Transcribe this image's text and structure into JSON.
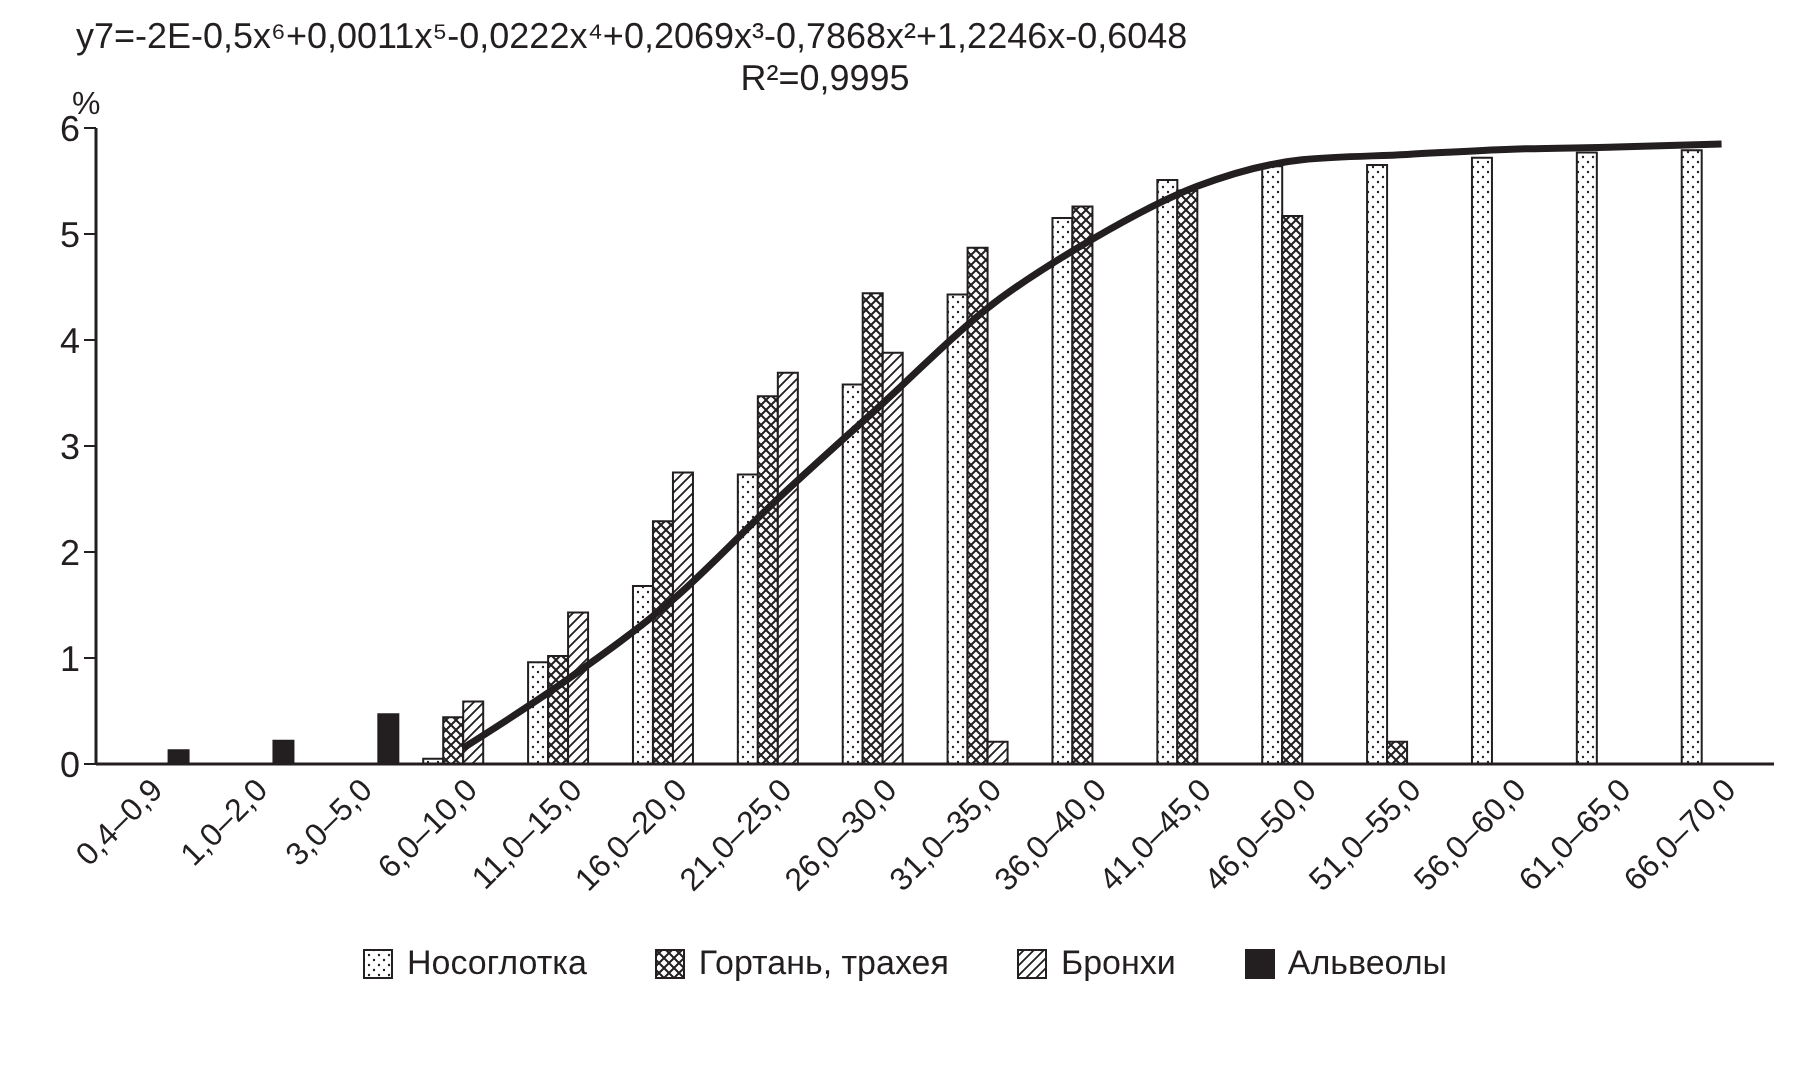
{
  "chart_data": {
    "type": "bar",
    "title": "y7=-2E-0,5x⁶+0,0011x⁵-0,0222x⁴+0,2069x³-0,7868x²+1,2246x-0,6048",
    "subtitle": "R²=0,9995",
    "ylabel": "%",
    "categories": [
      "0,4–0,9",
      "1,0–2,0",
      "3,0–5,0",
      "6,0–10,0",
      "11,0–15,0",
      "16,0–20,0",
      "21,0–25,0",
      "26,0–30,0",
      "31,0–35,0",
      "36,0–40,0",
      "41,0–45,0",
      "46,0–50,0",
      "51,0–55,0",
      "56,0–60,0",
      "61,0–65,0",
      "66,0–70,0"
    ],
    "series": [
      {
        "name": "Носоглотка",
        "color": "#231f20",
        "values": [
          null,
          null,
          null,
          0.05,
          0.96,
          1.68,
          2.73,
          3.58,
          4.43,
          5.15,
          5.51,
          5.64,
          5.65,
          5.72,
          5.77,
          5.79
        ]
      },
      {
        "name": "Гортань, трахея",
        "color": "#231f20",
        "values": [
          null,
          null,
          null,
          0.44,
          1.02,
          2.29,
          3.47,
          4.44,
          4.87,
          5.26,
          5.41,
          5.17,
          0.21,
          null,
          null,
          null
        ]
      },
      {
        "name": "Бронхи",
        "color": "#231f20",
        "values": [
          null,
          null,
          null,
          0.59,
          1.43,
          2.75,
          3.69,
          3.88,
          0.21,
          null,
          null,
          null,
          null,
          null,
          null,
          null
        ]
      },
      {
        "name": "Альвеолы",
        "color": "#231f20",
        "values": [
          0.13,
          0.22,
          0.47,
          null,
          null,
          null,
          null,
          null,
          null,
          null,
          null,
          null,
          null,
          null,
          null,
          null
        ]
      },
      {
        "type": "line",
        "color": "#231f20",
        "values": [
          null,
          null,
          null,
          0.15,
          0.8,
          1.55,
          2.5,
          3.4,
          4.3,
          4.95,
          5.45,
          5.7,
          5.75,
          5.8,
          5.82,
          5.85
        ]
      }
    ],
    "ylim": [
      0,
      6
    ],
    "yticks": [
      0,
      1,
      2,
      3,
      4,
      5,
      6
    ],
    "legend": "bottom",
    "marker": "none"
  }
}
